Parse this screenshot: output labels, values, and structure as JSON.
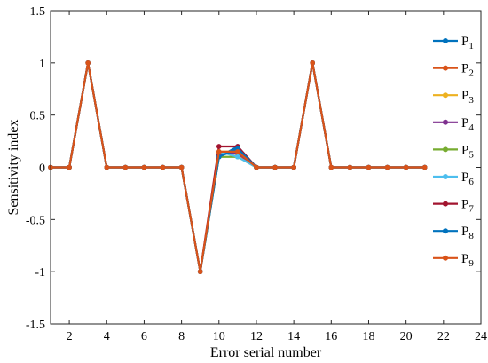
{
  "chart_data": {
    "type": "line",
    "title": "",
    "xlabel": "Error serial number",
    "ylabel": "Sensitivity index",
    "xlim": [
      1,
      24
    ],
    "ylim": [
      -1.5,
      1.5
    ],
    "xticks": [
      2,
      4,
      6,
      8,
      10,
      12,
      14,
      16,
      18,
      20,
      22,
      24
    ],
    "yticks": [
      -1.5,
      -1,
      -0.5,
      0,
      0.5,
      1,
      1.5
    ],
    "grid": false,
    "legend_position": "right",
    "x": [
      1,
      2,
      3,
      4,
      5,
      6,
      7,
      8,
      9,
      10,
      11,
      12,
      13,
      14,
      15,
      16,
      17,
      18,
      19,
      20,
      21
    ],
    "series": [
      {
        "legend_base": "P",
        "legend_sub": "1",
        "color": "#0072BD",
        "values": [
          0,
          0,
          1,
          0,
          0,
          0,
          0,
          0,
          -1,
          0.1,
          0.2,
          0,
          0,
          0,
          1,
          0,
          0,
          0,
          0,
          0,
          0
        ]
      },
      {
        "legend_base": "P",
        "legend_sub": "2",
        "color": "#D95319",
        "values": [
          0,
          0,
          1,
          0,
          0,
          0,
          0,
          0,
          -1,
          0.13,
          0.13,
          0,
          0,
          0,
          1,
          0,
          0,
          0,
          0,
          0,
          0
        ]
      },
      {
        "legend_base": "P",
        "legend_sub": "3",
        "color": "#EDB120",
        "values": [
          0,
          0,
          1,
          0,
          0,
          0,
          0,
          0,
          -1,
          0.15,
          0.15,
          0,
          0,
          0,
          1,
          0,
          0,
          0,
          0,
          0,
          0
        ]
      },
      {
        "legend_base": "P",
        "legend_sub": "4",
        "color": "#7E2F8E",
        "values": [
          0,
          0,
          1,
          0,
          0,
          0,
          0,
          0,
          -1,
          0.12,
          0.14,
          0,
          0,
          0,
          1,
          0,
          0,
          0,
          0,
          0,
          0
        ]
      },
      {
        "legend_base": "P",
        "legend_sub": "5",
        "color": "#77AC30",
        "values": [
          0,
          0,
          1,
          0,
          0,
          0,
          0,
          0,
          -1,
          0.1,
          0.1,
          0,
          0,
          0,
          1,
          0,
          0,
          0,
          0,
          0,
          0
        ]
      },
      {
        "legend_base": "P",
        "legend_sub": "6",
        "color": "#4DBEEE",
        "values": [
          0,
          0,
          1,
          0,
          0,
          0,
          0,
          0,
          -1,
          0.15,
          0.1,
          0,
          0,
          0,
          1,
          0,
          0,
          0,
          0,
          0,
          0
        ]
      },
      {
        "legend_base": "P",
        "legend_sub": "7",
        "color": "#A2142F",
        "values": [
          0,
          0,
          1,
          0,
          0,
          0,
          0,
          0,
          -1,
          0.2,
          0.2,
          0,
          0,
          0,
          1,
          0,
          0,
          0,
          0,
          0,
          0
        ]
      },
      {
        "legend_base": "P",
        "legend_sub": "8",
        "color": "#0072BD",
        "values": [
          0,
          0,
          1,
          0,
          0,
          0,
          0,
          0,
          -1,
          0.1,
          0.18,
          0,
          0,
          0,
          1,
          0,
          0,
          0,
          0,
          0,
          0
        ]
      },
      {
        "legend_base": "P",
        "legend_sub": "9",
        "color": "#D95319",
        "values": [
          0,
          0,
          1,
          0,
          0,
          0,
          0,
          0,
          -1,
          0.15,
          0.15,
          0,
          0,
          0,
          1,
          0,
          0,
          0,
          0,
          0,
          0
        ]
      }
    ]
  }
}
